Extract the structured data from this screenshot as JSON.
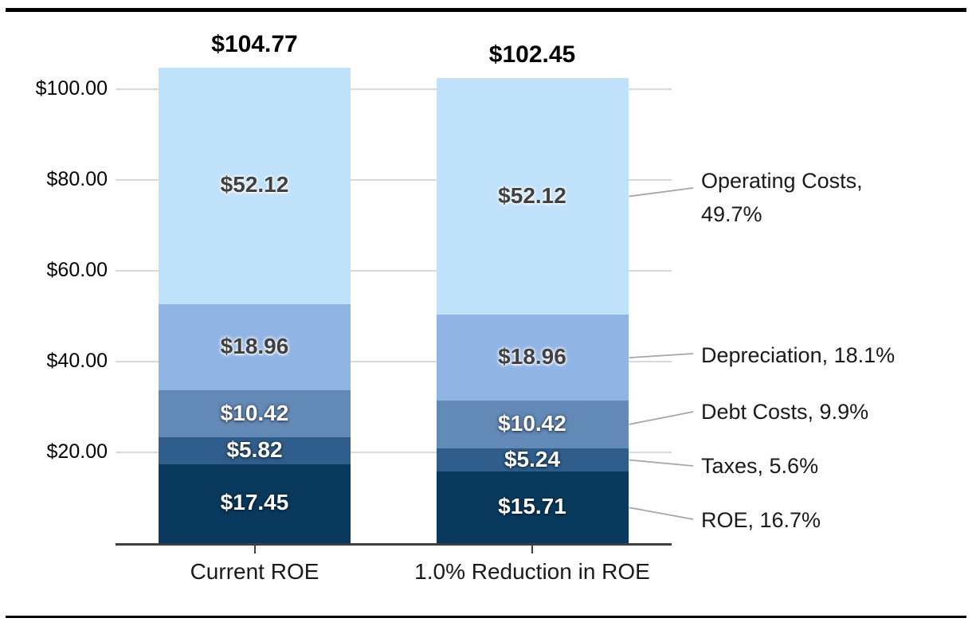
{
  "chart_data": {
    "type": "bar",
    "variant": "stacked-column",
    "title": "",
    "categories": [
      "Current ROE",
      "1.0% Reduction in ROE"
    ],
    "totals": [
      "$104.77",
      "$102.45"
    ],
    "segments": [
      {
        "name": "ROE",
        "color": "#093a5e",
        "label_style": "light",
        "values": [
          17.45,
          15.71
        ],
        "labels": [
          "$17.45",
          "$15.71"
        ]
      },
      {
        "name": "Taxes",
        "color": "#2f5e8c",
        "label_style": "light",
        "values": [
          5.82,
          5.24
        ],
        "labels": [
          "$5.82",
          "$5.24"
        ]
      },
      {
        "name": "Debt Costs",
        "color": "#6389b7",
        "label_style": "light",
        "values": [
          10.42,
          10.42
        ],
        "labels": [
          "$10.42",
          "$10.42"
        ]
      },
      {
        "name": "Depreciation",
        "color": "#90b4e4",
        "label_style": "dark",
        "values": [
          18.96,
          18.96
        ],
        "labels": [
          "$18.96",
          "$18.96"
        ]
      },
      {
        "name": "Operating Costs",
        "color": "#bfe1fa",
        "label_style": "dark",
        "values": [
          52.12,
          52.12
        ],
        "labels": [
          "$52.12",
          "$52.12"
        ]
      }
    ],
    "y_axis": {
      "ticks": [
        {
          "value": 20,
          "label": "$20.00"
        },
        {
          "value": 40,
          "label": "$40.00"
        },
        {
          "value": 60,
          "label": "$60.00"
        },
        {
          "value": 80,
          "label": "$80.00"
        },
        {
          "value": 100,
          "label": "$100.00"
        }
      ],
      "range": [
        0,
        110
      ],
      "grid": true
    },
    "annotations": [
      {
        "target": "Operating Costs",
        "lines": [
          "Operating Costs,",
          "49.7%"
        ]
      },
      {
        "target": "Depreciation",
        "lines": [
          "Depreciation, 18.1%"
        ]
      },
      {
        "target": "Debt Costs",
        "lines": [
          "Debt Costs, 9.9%"
        ]
      },
      {
        "target": "Taxes",
        "lines": [
          "Taxes, 5.6%"
        ]
      },
      {
        "target": "ROE",
        "lines": [
          "ROE, 16.7%"
        ]
      }
    ],
    "colors": {
      "grid": "#d9d9d9",
      "axis": "#404040",
      "leader": "#a6a6a6",
      "text": "#1a1a1a"
    }
  }
}
